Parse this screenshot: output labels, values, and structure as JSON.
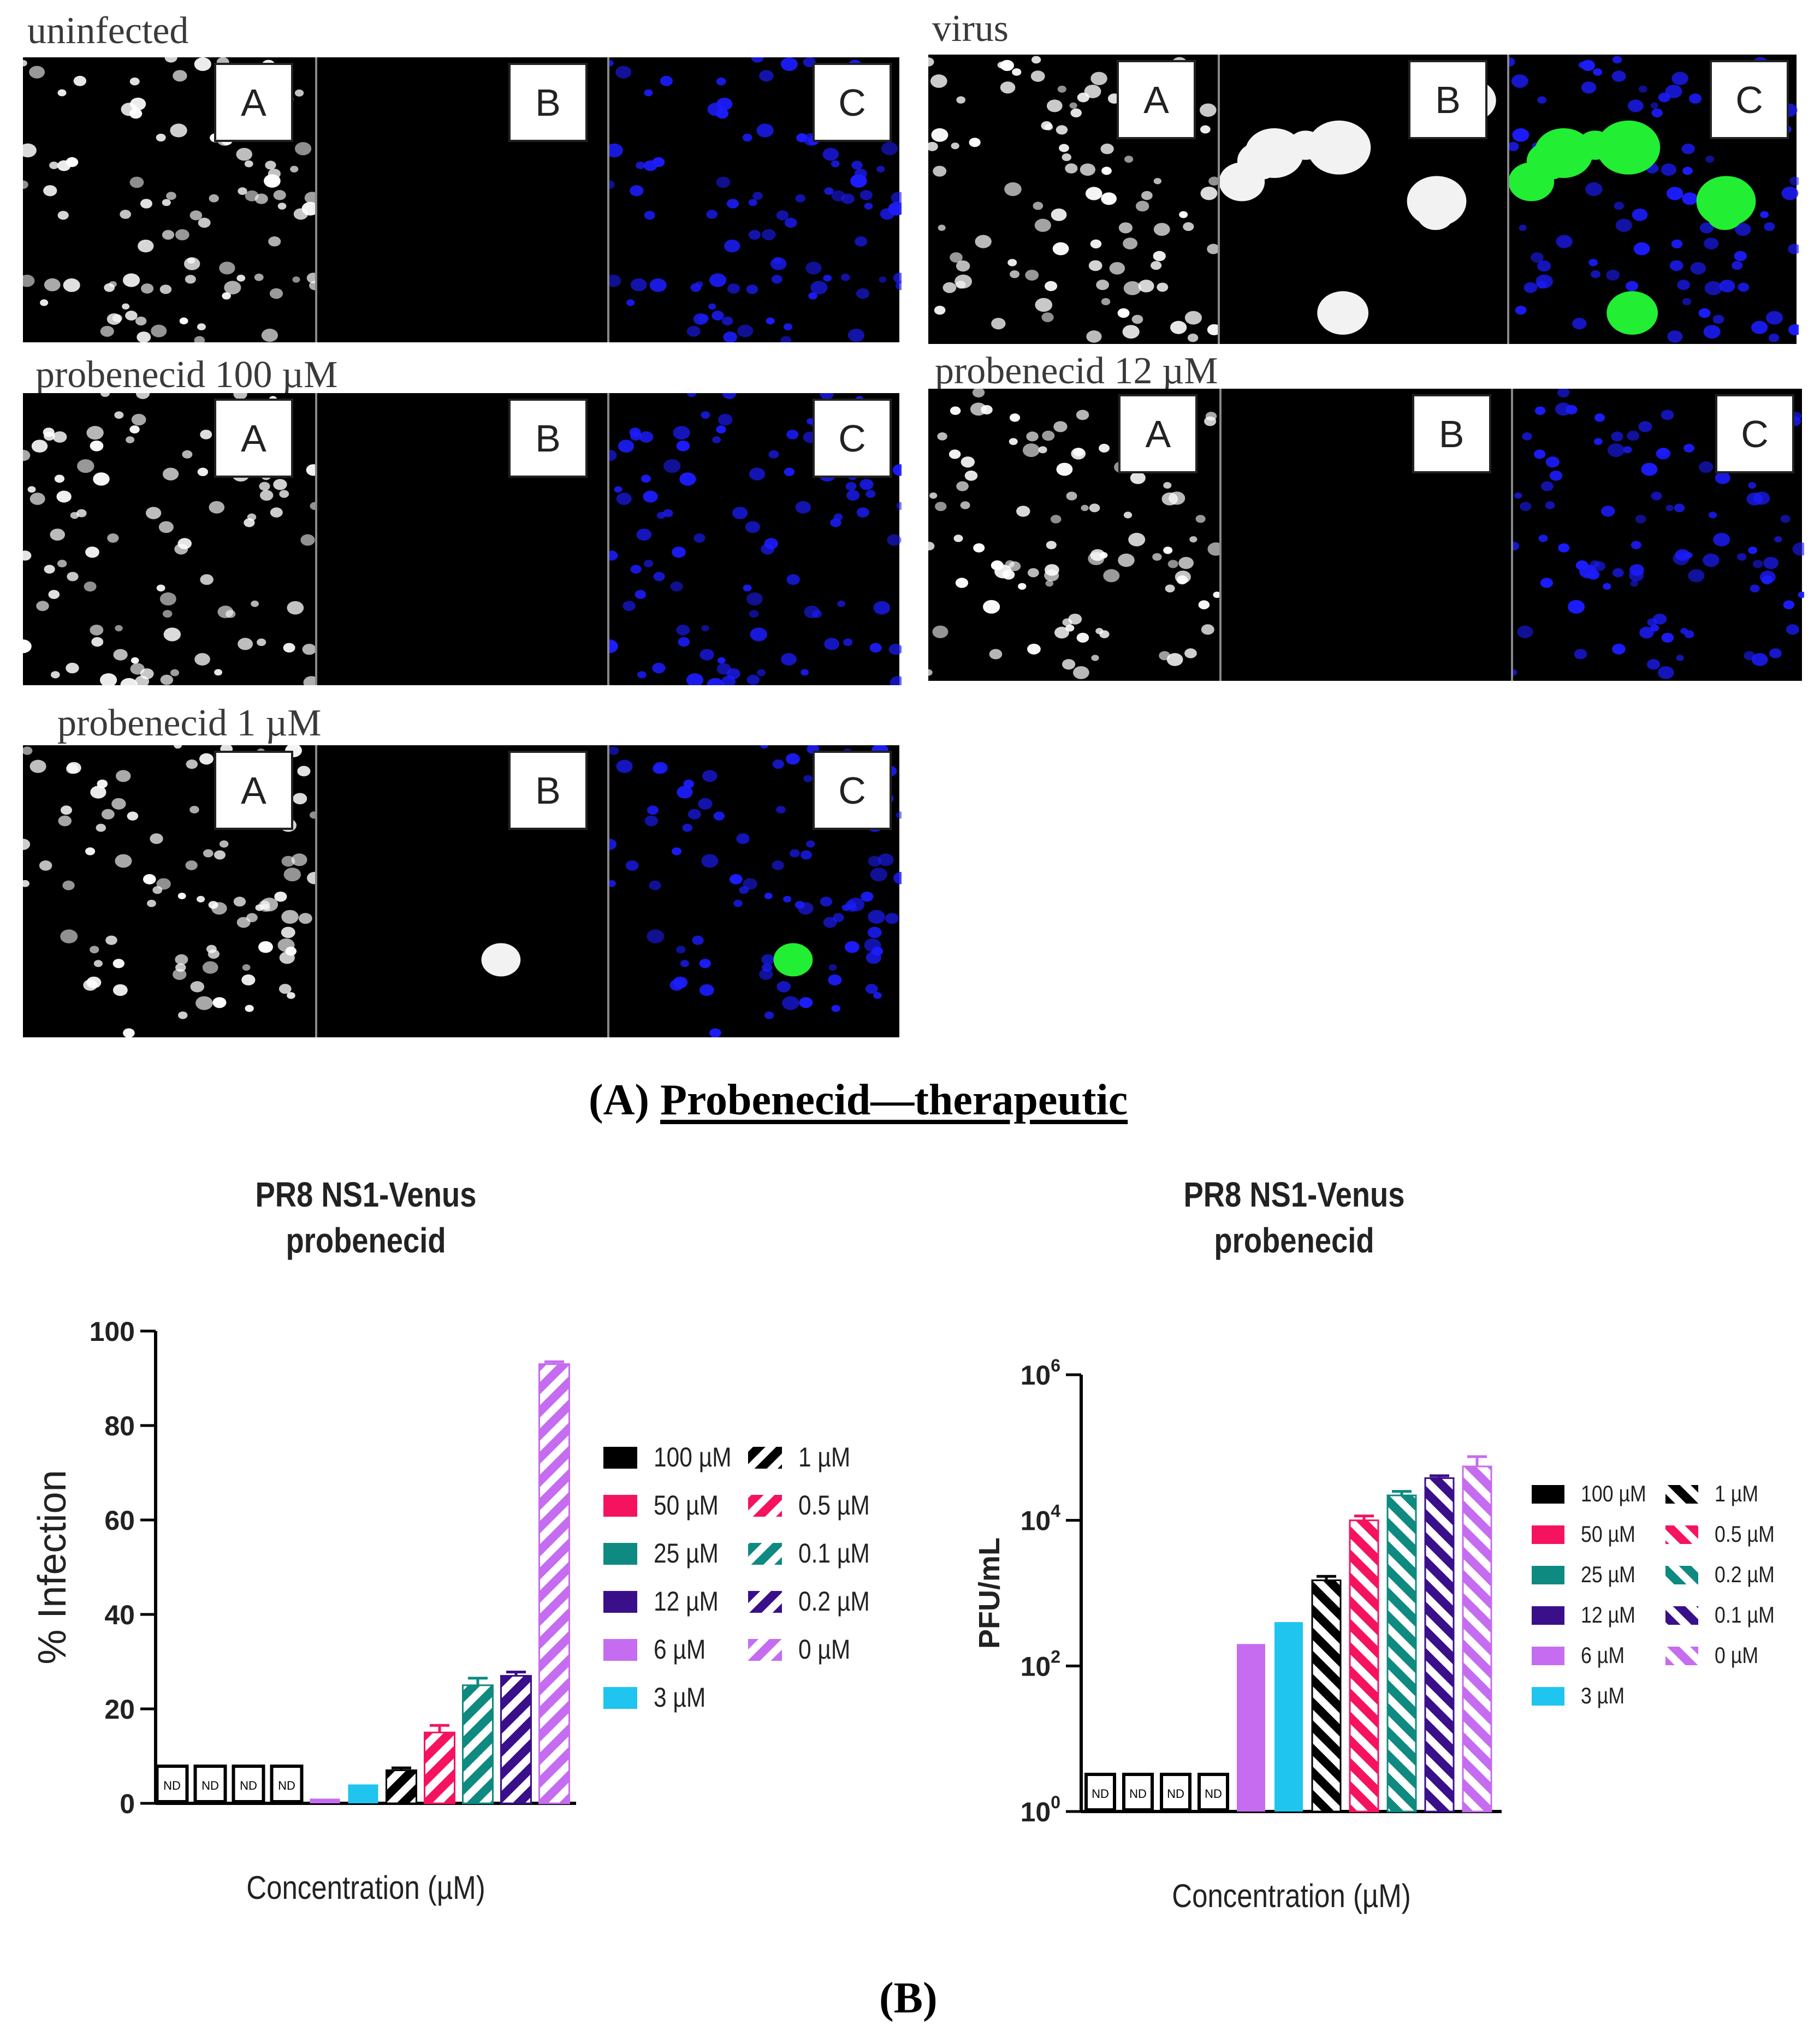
{
  "panel_a": {
    "groups": [
      {
        "label": "uninfected",
        "panels": [
          "A",
          "B",
          "C"
        ]
      },
      {
        "label": "virus",
        "panels": [
          "A",
          "B",
          "C"
        ]
      },
      {
        "label": "probenecid 100 µM",
        "panels": [
          "A",
          "B",
          "C"
        ]
      },
      {
        "label": "probenecid 12 µM",
        "panels": [
          "A",
          "B",
          "C"
        ]
      },
      {
        "label": "probenecid 1 µM",
        "panels": [
          "A",
          "B",
          "C"
        ]
      }
    ],
    "caption_letter": "(A)",
    "caption_title": "Probenecid—therapeutic"
  },
  "caption_b": "(B)",
  "colors": {
    "black": "#000000",
    "pink": "#f5135f",
    "teal": "#0f8a80",
    "indigo": "#3a0f8a",
    "lilac": "#c56cf0",
    "cyan": "#1fc4ef",
    "nucleus_blue": "#1c1cff",
    "venus_green": "#22ee33"
  },
  "chart_data": [
    {
      "type": "bar",
      "title": "PR8 NS1-Venus\nprobenecid",
      "title_lines": [
        "PR8 NS1-Venus",
        "probenecid"
      ],
      "xlabel": "Concentration (µM)",
      "ylabel": "% Infection",
      "ylim": [
        0,
        100
      ],
      "yticks": [
        "0",
        "20",
        "40",
        "60",
        "80",
        "100"
      ],
      "scale": "linear",
      "legend_position": "right",
      "categories": [
        "100 µM",
        "50 µM",
        "25 µM",
        "12 µM",
        "6 µM",
        "3 µM",
        "1 µM",
        "0.5 µM",
        "0.1 µM",
        "0.2 µM",
        "0 µM"
      ],
      "values": [
        null,
        null,
        null,
        null,
        1,
        4,
        7,
        15,
        25,
        27,
        93
      ],
      "errors": [
        0,
        0,
        0,
        0,
        0,
        0,
        0.5,
        1.5,
        1.5,
        0.8,
        0.5
      ],
      "nd_label": "ND",
      "legend": [
        {
          "label": "100 µM",
          "color": "black",
          "hatched": false
        },
        {
          "label": "50 µM",
          "color": "pink",
          "hatched": false
        },
        {
          "label": "25 µM",
          "color": "teal",
          "hatched": false
        },
        {
          "label": "12 µM",
          "color": "indigo",
          "hatched": false
        },
        {
          "label": "6 µM",
          "color": "lilac",
          "hatched": false
        },
        {
          "label": "3 µM",
          "color": "cyan",
          "hatched": false
        },
        {
          "label": "1 µM",
          "color": "black",
          "hatched": true
        },
        {
          "label": "0.5 µM",
          "color": "pink",
          "hatched": true
        },
        {
          "label": "0.1 µM",
          "color": "teal",
          "hatched": true
        },
        {
          "label": "0.2 µM",
          "color": "indigo",
          "hatched": true
        },
        {
          "label": "0 µM",
          "color": "lilac",
          "hatched": true
        }
      ]
    },
    {
      "type": "bar",
      "title": "PR8 NS1-Venus\nprobenecid",
      "title_lines": [
        "PR8 NS1-Venus",
        "probenecid"
      ],
      "xlabel": "Concentration (µM)",
      "ylabel": "PFU/mL",
      "ylim": [
        1,
        1000000
      ],
      "yticks": [
        "10^0",
        "10^2",
        "10^4",
        "10^6"
      ],
      "scale": "log",
      "legend_position": "right",
      "categories": [
        "100 µM",
        "50 µM",
        "25 µM",
        "12 µM",
        "6 µM",
        "3 µM",
        "1 µM",
        "0.5 µM",
        "0.2 µM",
        "0.1 µM",
        "0 µM"
      ],
      "values": [
        null,
        null,
        null,
        null,
        200,
        400,
        1500,
        10000,
        22000,
        38000,
        55000
      ],
      "errors": [
        0,
        0,
        0,
        0,
        0,
        0,
        200,
        1500,
        3000,
        3000,
        20000
      ],
      "nd_label": "ND",
      "legend": [
        {
          "label": "100 µM",
          "color": "black",
          "hatched": false
        },
        {
          "label": "50 µM",
          "color": "pink",
          "hatched": false
        },
        {
          "label": "25 µM",
          "color": "teal",
          "hatched": false
        },
        {
          "label": "12 µM",
          "color": "indigo",
          "hatched": false
        },
        {
          "label": "6 µM",
          "color": "lilac",
          "hatched": false
        },
        {
          "label": "3 µM",
          "color": "cyan",
          "hatched": false
        },
        {
          "label": "1 µM",
          "color": "black",
          "hatched": true
        },
        {
          "label": "0.5 µM",
          "color": "pink",
          "hatched": true
        },
        {
          "label": "0.2 µM",
          "color": "teal",
          "hatched": true
        },
        {
          "label": "0.1 µM",
          "color": "indigo",
          "hatched": true
        },
        {
          "label": "0 µM",
          "color": "lilac",
          "hatched": true
        }
      ]
    }
  ]
}
